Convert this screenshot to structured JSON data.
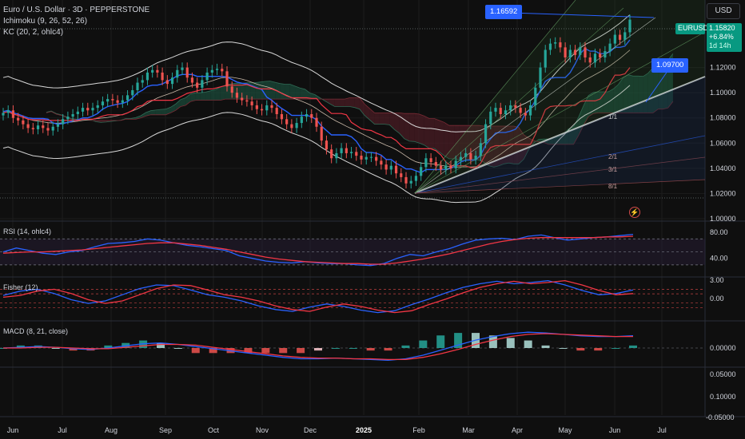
{
  "header": {
    "symbol_line": "Euro / U.S. Dollar · 3D · PEPPERSTONE",
    "ichimoku_line": "Ichimoku (9, 26, 52, 26)",
    "kc_line": "KC (20, 2, ohlc4)",
    "currency_button": "USD"
  },
  "price_badge": {
    "symbol": "EURUSD",
    "price": "1.15820",
    "change": "+6.84%",
    "countdown": "1d 14h"
  },
  "callouts": {
    "top": "1.16592",
    "mid": "1.09700"
  },
  "gann_labels": [
    "1/1",
    "2/1",
    "3/1",
    "8/1"
  ],
  "panes": {
    "rsi_label": "RSI (14, ohlc4)",
    "fisher_label": "Fisher (12)",
    "macd_label": "MACD (8, 21, close)"
  },
  "colors": {
    "background": "#0f0f0f",
    "bull": "#26a69a",
    "bear": "#ef5350",
    "blue": "#2962ff",
    "red": "#f23645",
    "kumo_green": "#1b4a3a",
    "kumo_red": "#4a1c24",
    "badge": "#089981"
  },
  "chart_data": [
    {
      "type": "candlestick",
      "title": "Euro / U.S. Dollar · 3D · PEPPERSTONE",
      "x_ticks": [
        "Jun",
        "Jul",
        "Aug",
        "Sep",
        "Oct",
        "Nov",
        "Dec",
        "2025",
        "Feb",
        "Mar",
        "Apr",
        "May",
        "Jun",
        "Jul"
      ],
      "y_ticks": [
        "1.00000",
        "1.02000",
        "1.04000",
        "1.06000",
        "1.08000",
        "1.10000",
        "1.12000"
      ],
      "ylim": [
        1.0,
        1.166
      ],
      "last_price": 1.1582,
      "levels": [
        1.16592,
        1.097
      ],
      "series": [
        {
          "name": "EURUSD",
          "close": [
            1.084,
            1.086,
            1.08,
            1.078,
            1.075,
            1.072,
            1.071,
            1.074,
            1.072,
            1.07,
            1.073,
            1.075,
            1.079,
            1.081,
            1.083,
            1.085,
            1.088,
            1.086,
            1.088,
            1.09,
            1.093,
            1.095,
            1.094,
            1.092,
            1.094,
            1.098,
            1.102,
            1.108,
            1.11,
            1.116,
            1.118,
            1.116,
            1.11,
            1.107,
            1.112,
            1.118,
            1.12,
            1.112,
            1.108,
            1.104,
            1.11,
            1.116,
            1.118,
            1.119,
            1.117,
            1.105,
            1.1,
            1.096,
            1.094,
            1.093,
            1.09,
            1.087,
            1.086,
            1.09,
            1.088,
            1.083,
            1.079,
            1.075,
            1.072,
            1.076,
            1.081,
            1.083,
            1.08,
            1.073,
            1.062,
            1.055,
            1.048,
            1.052,
            1.056,
            1.052,
            1.053,
            1.05,
            1.047,
            1.049,
            1.049,
            1.046,
            1.043,
            1.039,
            1.042,
            1.036,
            1.033,
            1.028,
            1.03,
            1.034,
            1.041,
            1.048,
            1.045,
            1.042,
            1.039,
            1.042,
            1.04,
            1.046,
            1.049,
            1.052,
            1.047,
            1.05,
            1.06,
            1.075,
            1.085,
            1.088,
            1.083,
            1.086,
            1.09,
            1.088,
            1.084,
            1.082,
            1.09,
            1.104,
            1.12,
            1.134,
            1.139,
            1.14,
            1.136,
            1.128,
            1.134,
            1.13,
            1.136,
            1.128,
            1.124,
            1.131,
            1.128,
            1.133,
            1.139,
            1.146,
            1.142,
            1.148,
            1.158
          ],
          "ohlc_summary": {
            "open": 1.084,
            "close": 1.158,
            "low": 1.018,
            "high": 1.1595
          }
        },
        {
          "name": "Tenkan-sen",
          "role": "ichimoku"
        },
        {
          "name": "Kijun-sen",
          "role": "ichimoku"
        },
        {
          "name": "Chikou",
          "role": "ichimoku"
        },
        {
          "name": "Kumo",
          "role": "cloud"
        },
        {
          "name": "KC upper",
          "role": "keltner"
        },
        {
          "name": "KC lower",
          "role": "keltner"
        }
      ],
      "grid": true,
      "legend": "top-left"
    },
    {
      "type": "line",
      "title": "RSI (14, ohlc4)",
      "y_ticks": [
        "80.00",
        "40.00"
      ],
      "ylim": [
        20,
        90
      ],
      "bands": [
        70,
        50,
        30
      ],
      "series": [
        {
          "name": "RSI",
          "values": [
            50,
            56,
            52,
            48,
            46,
            50,
            52,
            58,
            63,
            64,
            66,
            70,
            68,
            64,
            60,
            58,
            55,
            52,
            44,
            40,
            36,
            34,
            33,
            35,
            33,
            32,
            32,
            30,
            29,
            32,
            40,
            46,
            44,
            50,
            55,
            62,
            68,
            70,
            71,
            69,
            74,
            76,
            72,
            68,
            70,
            72,
            73,
            75,
            77
          ]
        },
        {
          "name": "RSI-based MA",
          "values": [
            48,
            49,
            50,
            50,
            51,
            52,
            53,
            55,
            57,
            59,
            61,
            63,
            64,
            64,
            62,
            60,
            57,
            54,
            50,
            46,
            42,
            39,
            37,
            35,
            34,
            33,
            32,
            32,
            31,
            31,
            33,
            36,
            39,
            43,
            47,
            52,
            57,
            62,
            66,
            69,
            71,
            72,
            72,
            72,
            72,
            72,
            73,
            73,
            74
          ]
        }
      ]
    },
    {
      "type": "line",
      "title": "Fisher (12)",
      "y_ticks": [
        "3.00",
        "0.00"
      ],
      "ylim": [
        -3,
        3.5
      ],
      "levels": [
        1.5,
        0.75,
        -0.75,
        -1.5
      ],
      "series": [
        {
          "name": "Fisher",
          "values": [
            0.5,
            1.2,
            1.5,
            0.8,
            -0.2,
            -0.8,
            -0.4,
            0.6,
            1.6,
            2.2,
            2.1,
            1.4,
            0.6,
            0.2,
            -0.4,
            -1.2,
            -1.8,
            -2.1,
            -1.4,
            -0.9,
            -1.3,
            -1.9,
            -2.3,
            -2.0,
            -1.0,
            -0.1,
            0.9,
            1.8,
            2.4,
            2.8,
            2.4,
            2.6,
            2.9,
            2.2,
            1.3,
            0.6,
            0.8,
            1.4
          ]
        },
        {
          "name": "Trigger",
          "values": [
            0.2,
            0.5,
            1.2,
            1.5,
            0.8,
            -0.2,
            -0.8,
            -0.4,
            0.6,
            1.6,
            2.2,
            2.1,
            1.4,
            0.6,
            0.2,
            -0.4,
            -1.2,
            -1.8,
            -2.1,
            -1.4,
            -0.9,
            -1.3,
            -1.9,
            -2.3,
            -2.0,
            -1.0,
            -0.1,
            0.9,
            1.8,
            2.4,
            2.8,
            2.4,
            2.6,
            2.9,
            2.2,
            1.3,
            0.6,
            0.8
          ]
        }
      ]
    },
    {
      "type": "bar",
      "title": "MACD (8, 21, close)",
      "y_ticks": [
        "0.00000",
        "0.05000",
        "0.10000",
        "-0.05000"
      ],
      "ylim": [
        -0.05,
        0.01
      ],
      "series": [
        {
          "name": "MACD",
          "values": [
            0.0,
            0.001,
            0.002,
            0.001,
            -0.001,
            -0.002,
            0.0,
            0.003,
            0.006,
            0.007,
            0.005,
            0.002,
            -0.001,
            -0.004,
            -0.007,
            -0.01,
            -0.013,
            -0.015,
            -0.015,
            -0.014,
            -0.015,
            -0.016,
            -0.017,
            -0.015,
            -0.01,
            -0.003,
            0.004,
            0.011,
            0.016,
            0.02,
            0.022,
            0.021,
            0.019,
            0.017,
            0.016,
            0.016,
            0.017
          ]
        },
        {
          "name": "Signal",
          "values": [
            0.0,
            0.0,
            0.001,
            0.001,
            0.0,
            -0.001,
            -0.001,
            0.001,
            0.003,
            0.005,
            0.005,
            0.004,
            0.001,
            -0.002,
            -0.005,
            -0.008,
            -0.011,
            -0.013,
            -0.014,
            -0.014,
            -0.015,
            -0.015,
            -0.016,
            -0.016,
            -0.013,
            -0.008,
            -0.002,
            0.005,
            0.011,
            0.016,
            0.019,
            0.02,
            0.019,
            0.018,
            0.017,
            0.016,
            0.016
          ]
        }
      ]
    }
  ]
}
